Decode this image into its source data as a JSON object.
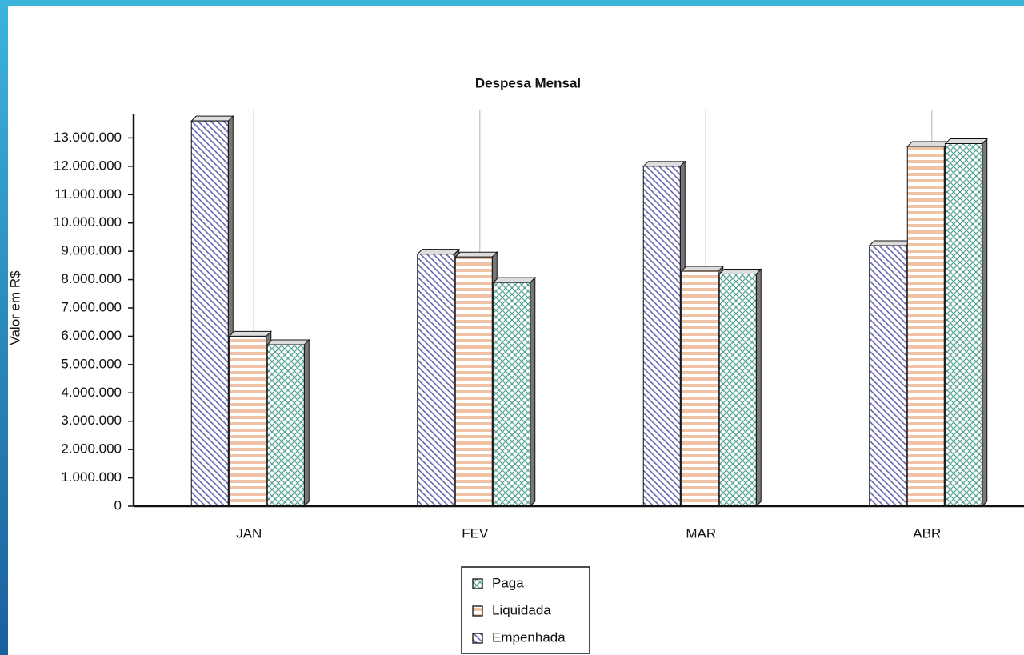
{
  "chart_data": {
    "type": "bar",
    "title": "Despesa Mensal",
    "y_label": "Valor em R$",
    "categories": [
      "JAN",
      "FEV",
      "MAR",
      "ABR"
    ],
    "series": [
      {
        "name": "Paga",
        "color": "#4f9e90",
        "values": [
          5700000,
          7900000,
          8200000,
          12800000
        ]
      },
      {
        "name": "Liquidada",
        "color": "#f0c2a6",
        "values": [
          6000000,
          8800000,
          8300000,
          12700000
        ]
      },
      {
        "name": "Empenhada",
        "color": "#6666b0",
        "values": [
          13600000,
          8900000,
          12000000,
          9200000
        ]
      }
    ],
    "ylim": [
      0,
      14000000
    ],
    "yticks": [
      0,
      {
        "value": 1000000,
        "label": "1.000.000"
      },
      {
        "value": 2000000,
        "label": "2.000.000"
      },
      {
        "value": 3000000,
        "label": "3.000.000"
      },
      {
        "value": 4000000,
        "label": "4.000.000"
      },
      {
        "value": 5000000,
        "label": "5.000.000"
      },
      {
        "value": 6000000,
        "label": "6.000.000"
      },
      {
        "value": 7000000,
        "label": "7.000.000"
      },
      {
        "value": 8000000,
        "label": "8.000.000"
      },
      {
        "value": 9000000,
        "label": "9.000.000"
      },
      {
        "value": 10000000,
        "label": "10.000.000"
      },
      {
        "value": 11000000,
        "label": "11.000.000"
      },
      {
        "value": 12000000,
        "label": "12.000.000"
      },
      {
        "value": 13000000,
        "label": "13.000.000"
      }
    ]
  }
}
